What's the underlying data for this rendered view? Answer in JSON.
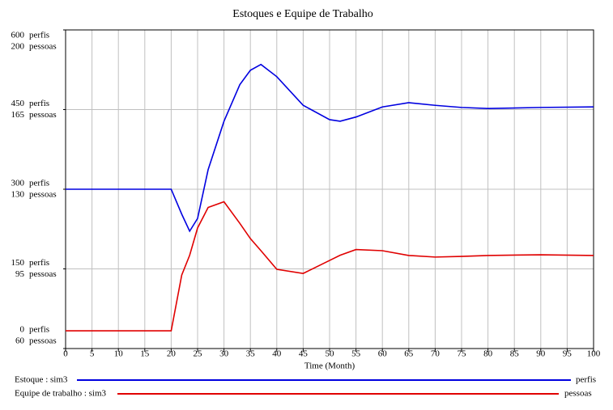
{
  "chart_data": {
    "type": "line",
    "title": "Estoques e Equipe de Trabalho",
    "x_label": "Time (Month)",
    "x": [
      0,
      20,
      22,
      23.5,
      25,
      27,
      30,
      33,
      35,
      37,
      40,
      45,
      50,
      52,
      55,
      60,
      65,
      70,
      75,
      80,
      90,
      100
    ],
    "series": [
      {
        "name": "Estoque : sim3",
        "unit": "perfis",
        "color": "#0000e0",
        "axis": "y",
        "values": [
          300,
          300,
          253,
          221,
          245,
          337,
          428,
          497,
          524,
          535,
          512,
          458,
          431,
          428,
          436,
          455,
          463,
          458,
          454,
          452,
          454,
          455
        ]
      },
      {
        "name": "Equipe de trabalho : sim3",
        "unit": "pessoas",
        "color": "#e00000",
        "axis": "y2",
        "values": [
          67.8,
          67.8,
          92.3,
          101,
          113,
          122,
          124.5,
          115,
          108.3,
          103,
          94.8,
          93,
          98.7,
          101,
          103.5,
          103,
          100.9,
          100.2,
          100.5,
          100.9,
          101.2,
          100.9
        ]
      }
    ],
    "xlim": [
      0,
      100
    ],
    "xticks": [
      0,
      5,
      10,
      15,
      20,
      25,
      30,
      35,
      40,
      45,
      50,
      55,
      60,
      65,
      70,
      75,
      80,
      85,
      90,
      95,
      100
    ],
    "ylim": [
      0,
      600
    ],
    "yticks": [
      0,
      150,
      300,
      450,
      600
    ],
    "y2lim": [
      60,
      200
    ],
    "y2ticks": [
      60,
      95,
      130,
      165,
      200
    ],
    "grid": true
  }
}
